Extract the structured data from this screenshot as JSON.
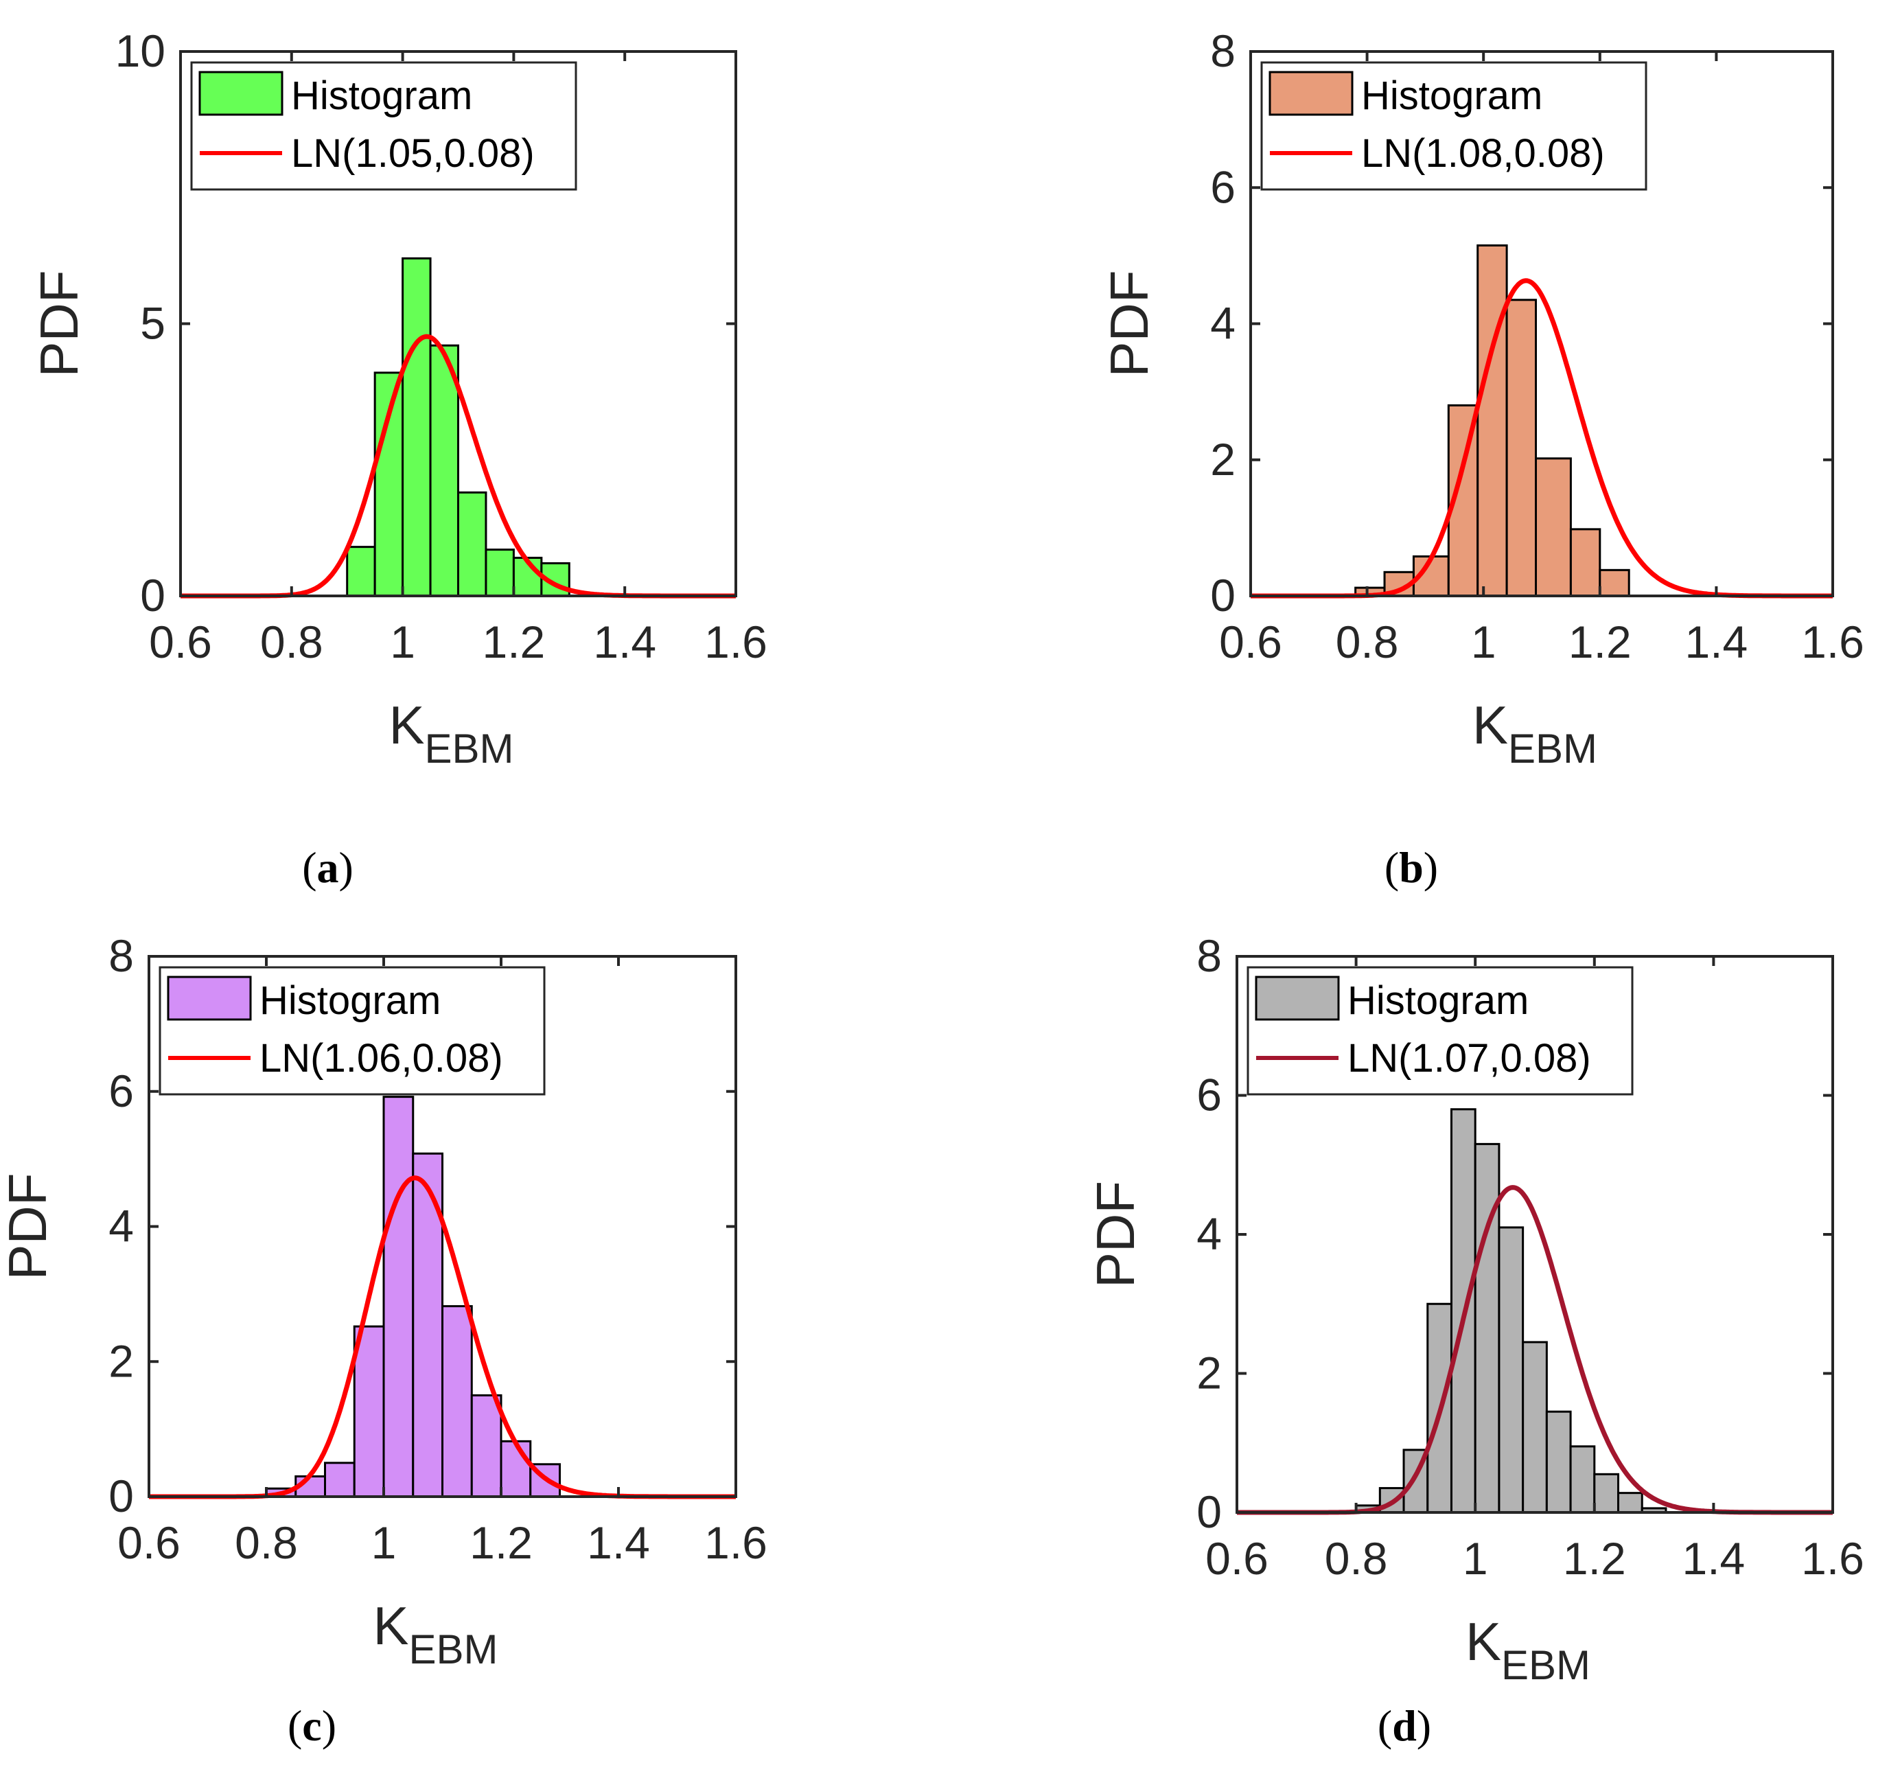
{
  "chart_data": [
    {
      "type": "bar",
      "panel": "a",
      "caption_letter": "a",
      "xlabel": "K",
      "xlabel_sub": "EBM",
      "ylabel": "PDF",
      "xlim": [
        0.6,
        1.6
      ],
      "ylim": [
        0,
        10
      ],
      "xticks": [
        "0.6",
        "0.8",
        "1",
        "1.2",
        "1.4",
        "1.6"
      ],
      "yticks": [
        "0",
        "5",
        "10"
      ],
      "bin_edges": [
        0.9,
        0.95,
        1.0,
        1.05,
        1.1,
        1.15,
        1.2,
        1.25,
        1.3
      ],
      "values": [
        0.9,
        4.1,
        6.2,
        4.6,
        1.9,
        0.85,
        0.7,
        0.6
      ],
      "fit": {
        "mu": 1.05,
        "sigma": 0.08
      },
      "legend": [
        "Histogram",
        "LN(1.05,0.08)"
      ],
      "bar_color": "#66ff55",
      "fit_color": "#ff0000"
    },
    {
      "type": "bar",
      "panel": "b",
      "caption_letter": "b",
      "xlabel": "K",
      "xlabel_sub": "EBM",
      "ylabel": "PDF",
      "xlim": [
        0.6,
        1.6
      ],
      "ylim": [
        0,
        8
      ],
      "xticks": [
        "0.6",
        "0.8",
        "1",
        "1.2",
        "1.4",
        "1.6"
      ],
      "yticks": [
        "0",
        "2",
        "4",
        "6",
        "8"
      ],
      "bin_edges": [
        0.78,
        0.83,
        0.88,
        0.94,
        0.99,
        1.04,
        1.09,
        1.15,
        1.2,
        1.25,
        1.31
      ],
      "values": [
        0.12,
        0.35,
        0.58,
        2.8,
        5.15,
        4.35,
        2.02,
        0.98,
        0.38,
        0.0
      ],
      "fit": {
        "mu": 1.08,
        "sigma": 0.08
      },
      "legend": [
        "Histogram",
        "LN(1.08,0.08)"
      ],
      "bar_color": "#e89c7a",
      "fit_color": "#ff0000"
    },
    {
      "type": "bar",
      "panel": "c",
      "caption_letter": "c",
      "xlabel": "K",
      "xlabel_sub": "EBM",
      "ylabel": "PDF",
      "xlim": [
        0.6,
        1.6
      ],
      "ylim": [
        0,
        8
      ],
      "xticks": [
        "0.6",
        "0.8",
        "1",
        "1.2",
        "1.4",
        "1.6"
      ],
      "yticks": [
        "0",
        "2",
        "4",
        "6",
        "8"
      ],
      "bin_edges": [
        0.8,
        0.85,
        0.9,
        0.95,
        1.0,
        1.05,
        1.1,
        1.15,
        1.2,
        1.25,
        1.3
      ],
      "values": [
        0.12,
        0.3,
        0.5,
        2.52,
        5.92,
        5.08,
        2.82,
        1.5,
        0.82,
        0.48
      ],
      "fit": {
        "mu": 1.06,
        "sigma": 0.08
      },
      "legend": [
        "Histogram",
        "LN(1.06,0.08)"
      ],
      "bar_color": "#d38ff7",
      "fit_color": "#ff0000"
    },
    {
      "type": "bar",
      "panel": "d",
      "caption_letter": "d",
      "xlabel": "K",
      "xlabel_sub": "EBM",
      "ylabel": "PDF",
      "xlim": [
        0.6,
        1.6
      ],
      "ylim": [
        0,
        8
      ],
      "xticks": [
        "0.6",
        "0.8",
        "1",
        "1.2",
        "1.4",
        "1.6"
      ],
      "yticks": [
        "0",
        "2",
        "4",
        "6",
        "8"
      ],
      "bin_edges": [
        0.8,
        0.84,
        0.88,
        0.92,
        0.96,
        1.0,
        1.04,
        1.08,
        1.12,
        1.16,
        1.2,
        1.24,
        1.28,
        1.32
      ],
      "values": [
        0.1,
        0.35,
        0.9,
        3.0,
        5.8,
        5.3,
        4.1,
        2.45,
        1.45,
        0.95,
        0.55,
        0.28,
        0.06
      ],
      "fit": {
        "mu": 1.07,
        "sigma": 0.08
      },
      "legend": [
        "Histogram",
        "LN(1.07,0.08)"
      ],
      "bar_color": "#b3b3b3",
      "fit_color": "#a3162e"
    }
  ]
}
